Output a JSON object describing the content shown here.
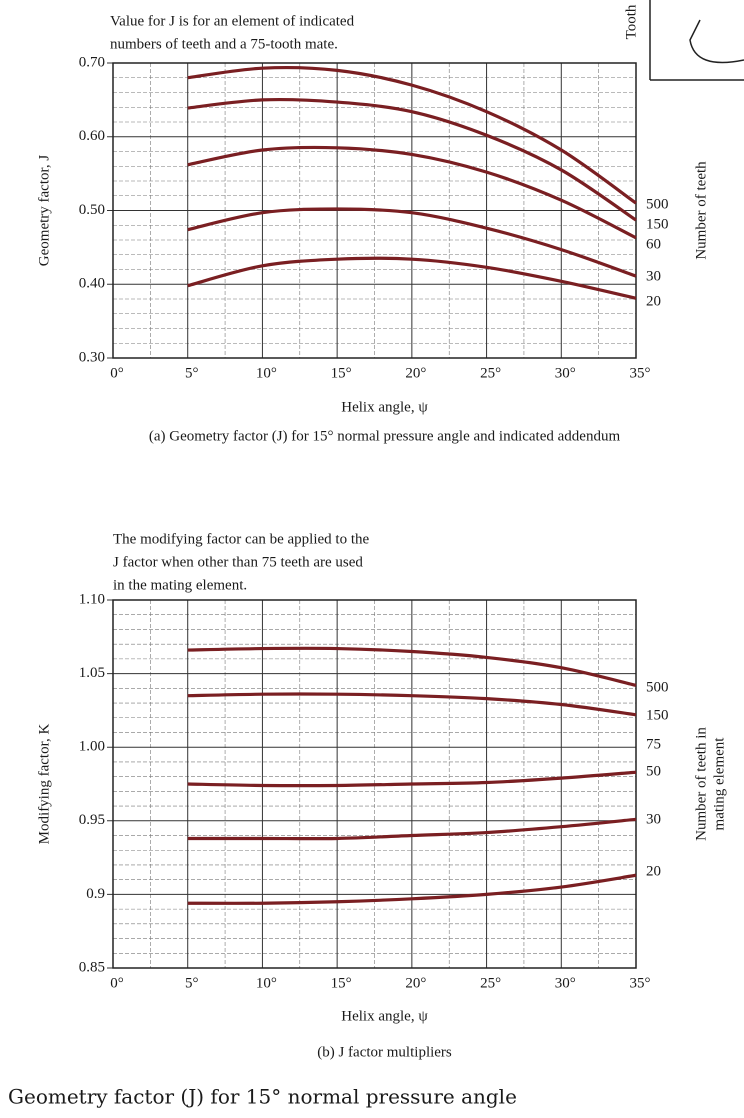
{
  "chart_data": [
    {
      "type": "line",
      "annotation": [
        "Value for J is for an element of indicated",
        "numbers of teeth and a 75-tooth mate."
      ],
      "x_label": "Helix angle, ψ",
      "y_label": "Geometry factor, J",
      "legend_title": [
        "Number of teeth"
      ],
      "caption": "(a) Geometry factor (J) for 15° normal pressure angle and indicated addendum",
      "x": [
        5,
        10,
        15,
        20,
        25,
        30,
        35
      ],
      "xlim": [
        0,
        35
      ],
      "xticks": [
        {
          "value": 0,
          "label": "0°"
        },
        {
          "value": 5,
          "label": "5°"
        },
        {
          "value": 10,
          "label": "10°"
        },
        {
          "value": 15,
          "label": "15°"
        },
        {
          "value": 20,
          "label": "20°"
        },
        {
          "value": 25,
          "label": "25°"
        },
        {
          "value": 30,
          "label": "30°"
        },
        {
          "value": 35,
          "label": "35°"
        }
      ],
      "ylim": [
        0.3,
        0.7
      ],
      "yticks": [
        {
          "value": 0.3,
          "label": "0.30"
        },
        {
          "value": 0.4,
          "label": "0.40"
        },
        {
          "value": 0.5,
          "label": "0.50"
        },
        {
          "value": 0.6,
          "label": "0.60"
        },
        {
          "value": 0.7,
          "label": "0.70"
        }
      ],
      "grid": true,
      "series": [
        {
          "name": "500",
          "color": "#7a1f22",
          "values": [
            0.68,
            0.693,
            0.69,
            0.67,
            0.634,
            0.582,
            0.51
          ]
        },
        {
          "name": "150",
          "color": "#7a1f22",
          "values": [
            0.639,
            0.65,
            0.647,
            0.634,
            0.602,
            0.555,
            0.487
          ]
        },
        {
          "name": "60",
          "color": "#7a1f22",
          "values": [
            0.562,
            0.582,
            0.585,
            0.576,
            0.552,
            0.514,
            0.463
          ]
        },
        {
          "name": "30",
          "color": "#7a1f22",
          "values": [
            0.474,
            0.497,
            0.502,
            0.497,
            0.476,
            0.447,
            0.411
          ]
        },
        {
          "name": "20",
          "color": "#7a1f22",
          "values": [
            0.398,
            0.425,
            0.434,
            0.434,
            0.423,
            0.404,
            0.381
          ]
        }
      ]
    },
    {
      "type": "line",
      "annotation": [
        "The modifying factor can be applied to the",
        "J factor when other than 75 teeth are used",
        "in the mating element."
      ],
      "x_label": "Helix angle, ψ",
      "y_label": "Modifying factor, K",
      "legend_title": [
        "Number of teeth in",
        "mating element"
      ],
      "caption": "(b) J factor multipliers",
      "extra_label": "75",
      "x": [
        5,
        10,
        15,
        20,
        25,
        30,
        35
      ],
      "xlim": [
        0,
        35
      ],
      "xticks": [
        {
          "value": 0,
          "label": "0°"
        },
        {
          "value": 5,
          "label": "5°"
        },
        {
          "value": 10,
          "label": "10°"
        },
        {
          "value": 15,
          "label": "15°"
        },
        {
          "value": 20,
          "label": "20°"
        },
        {
          "value": 25,
          "label": "25°"
        },
        {
          "value": 30,
          "label": "30°"
        },
        {
          "value": 35,
          "label": "35°"
        }
      ],
      "ylim": [
        0.85,
        1.1
      ],
      "yticks": [
        0.85,
        0.9,
        0.95,
        {
          "value": 1,
          "label": "1.00"
        },
        1.05,
        {
          "value": 1.1,
          "label": "1.10"
        }
      ],
      "grid": true,
      "series": [
        {
          "name": "500",
          "color": "#7a1f22",
          "values": [
            1.066,
            1.067,
            1.067,
            1.065,
            1.061,
            1.054,
            1.042
          ]
        },
        {
          "name": "150",
          "color": "#7a1f22",
          "values": [
            1.035,
            1.036,
            1.036,
            1.035,
            1.033,
            1.029,
            1.022
          ]
        },
        {
          "name": "50",
          "color": "#7a1f22",
          "values": [
            0.975,
            0.974,
            0.974,
            0.975,
            0.976,
            0.979,
            0.983
          ]
        },
        {
          "name": "30",
          "color": "#7a1f22",
          "values": [
            0.938,
            0.938,
            0.938,
            0.94,
            0.942,
            0.946,
            0.951
          ]
        },
        {
          "name": "20",
          "color": "#7a1f22",
          "values": [
            0.894,
            0.894,
            0.895,
            0.897,
            0.9,
            0.905,
            0.913
          ]
        }
      ]
    }
  ],
  "page_caption": "Geometry factor (J) for 15° normal pressure angle",
  "fragment_text": "Tooth"
}
